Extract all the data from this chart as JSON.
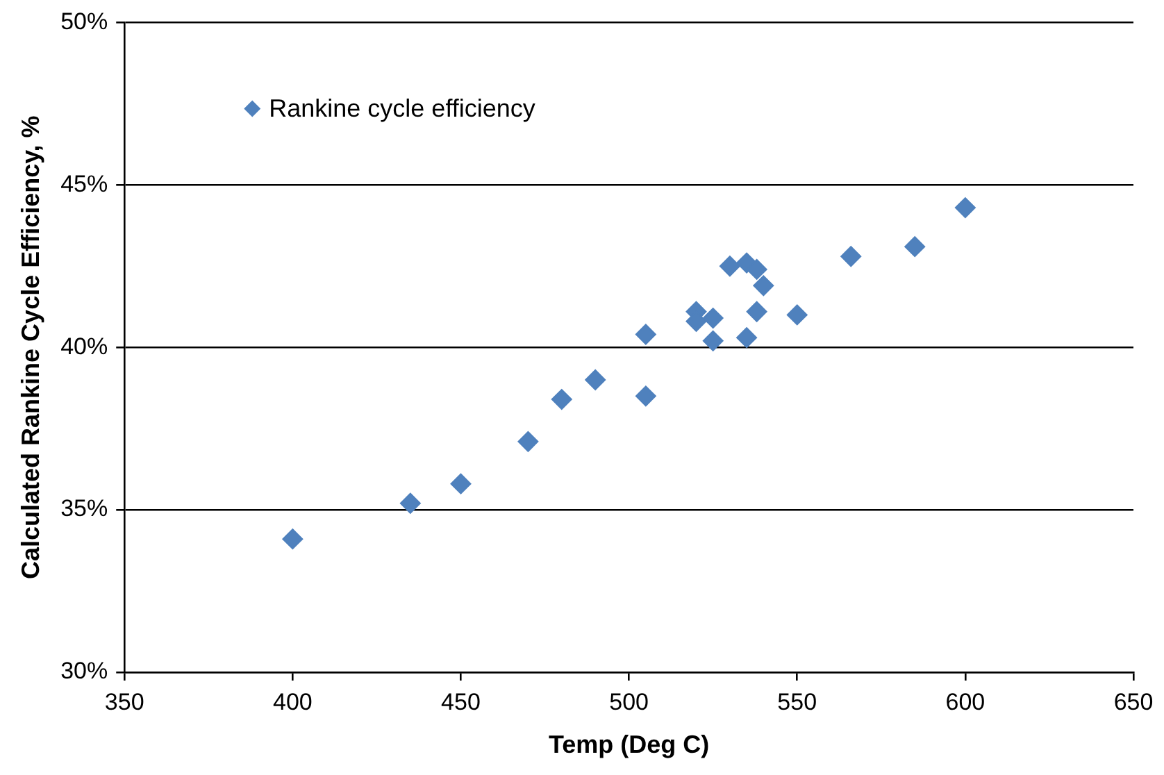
{
  "chart_data": {
    "type": "scatter",
    "xlabel": "Temp (Deg C)",
    "ylabel": "Calculated Rankine Cycle Efficiency, %",
    "xlim": [
      350,
      650
    ],
    "xticks": [
      350,
      400,
      450,
      500,
      550,
      600,
      650
    ],
    "ylim": [
      30,
      50
    ],
    "yticks": [
      {
        "value": 30,
        "label": "30%"
      },
      {
        "value": 35,
        "label": "35%"
      },
      {
        "value": 40,
        "label": "40%"
      },
      {
        "value": 45,
        "label": "45%"
      },
      {
        "value": 50,
        "label": "50%"
      }
    ],
    "grid": "y",
    "legend": "top left",
    "marker": "diamond",
    "series": [
      {
        "name": "Rankine cycle efficiency",
        "color": "#4f81bd",
        "x": [
          400,
          435,
          450,
          470,
          480,
          490,
          505,
          505,
          520,
          520,
          525,
          525,
          530,
          535,
          538,
          540,
          538,
          535,
          550,
          566,
          585,
          600
        ],
        "values": [
          34.1,
          35.2,
          35.8,
          37.1,
          38.4,
          39.0,
          40.4,
          38.5,
          41.1,
          40.8,
          40.9,
          40.2,
          42.5,
          42.6,
          42.4,
          41.9,
          41.1,
          40.3,
          41.0,
          42.8,
          43.1,
          44.3
        ]
      }
    ]
  }
}
